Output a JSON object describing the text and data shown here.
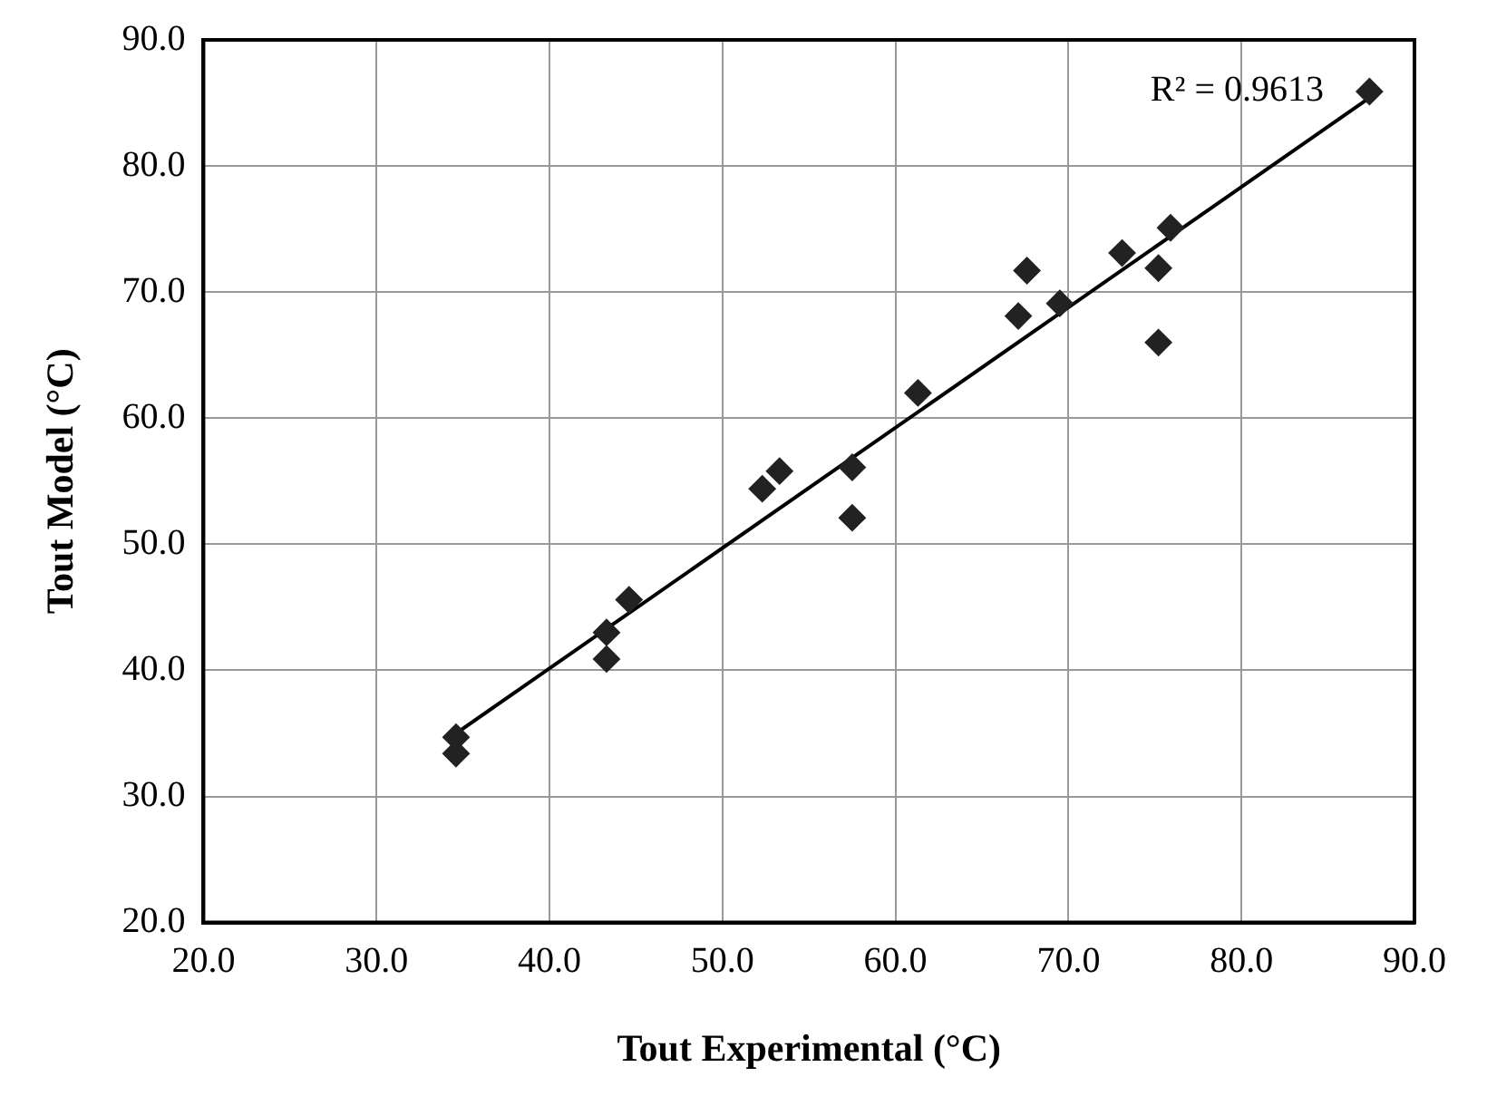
{
  "chart_data": {
    "type": "scatter",
    "xlabel": "Tout Experimental (°C)",
    "ylabel": "Tout Model (°C)",
    "annotations": [
      "R² = 0.9613"
    ],
    "series": [
      {
        "color": "#222222",
        "marker": "diamond",
        "x": [
          34.6,
          34.6,
          43.3,
          43.3,
          44.6,
          52.3,
          53.3,
          57.5,
          57.5,
          61.3,
          67.1,
          67.6,
          69.5,
          73.1,
          75.2,
          75.2,
          75.9,
          87.4
        ],
        "values": [
          34.7,
          33.4,
          43.0,
          40.9,
          45.6,
          54.4,
          55.8,
          56.1,
          52.1,
          62.0,
          68.1,
          71.7,
          69.1,
          73.1,
          71.9,
          66.0,
          75.1,
          85.9
        ]
      },
      {
        "type": "line",
        "color": "#000000",
        "marker": "none",
        "x": [
          34.6,
          87.4
        ],
        "values": [
          35.0,
          85.4
        ]
      }
    ],
    "xlim": [
      20,
      90
    ],
    "ylim": [
      20,
      90
    ],
    "xticks": [
      {
        "value": 20,
        "label": "20.0"
      },
      {
        "value": 30,
        "label": "30.0"
      },
      {
        "value": 40,
        "label": "40.0"
      },
      {
        "value": 50,
        "label": "50.0"
      },
      {
        "value": 60,
        "label": "60.0"
      },
      {
        "value": 70,
        "label": "70.0"
      },
      {
        "value": 80,
        "label": "80.0"
      },
      {
        "value": 90,
        "label": "90.0"
      }
    ],
    "yticks": [
      {
        "value": 20,
        "label": "20.0"
      },
      {
        "value": 30,
        "label": "30.0"
      },
      {
        "value": 40,
        "label": "40.0"
      },
      {
        "value": 50,
        "label": "50.0"
      },
      {
        "value": 60,
        "label": "60.0"
      },
      {
        "value": 70,
        "label": "70.0"
      },
      {
        "value": 80,
        "label": "80.0"
      },
      {
        "value": 90,
        "label": "90.0"
      }
    ],
    "grid": true,
    "legend": false
  }
}
